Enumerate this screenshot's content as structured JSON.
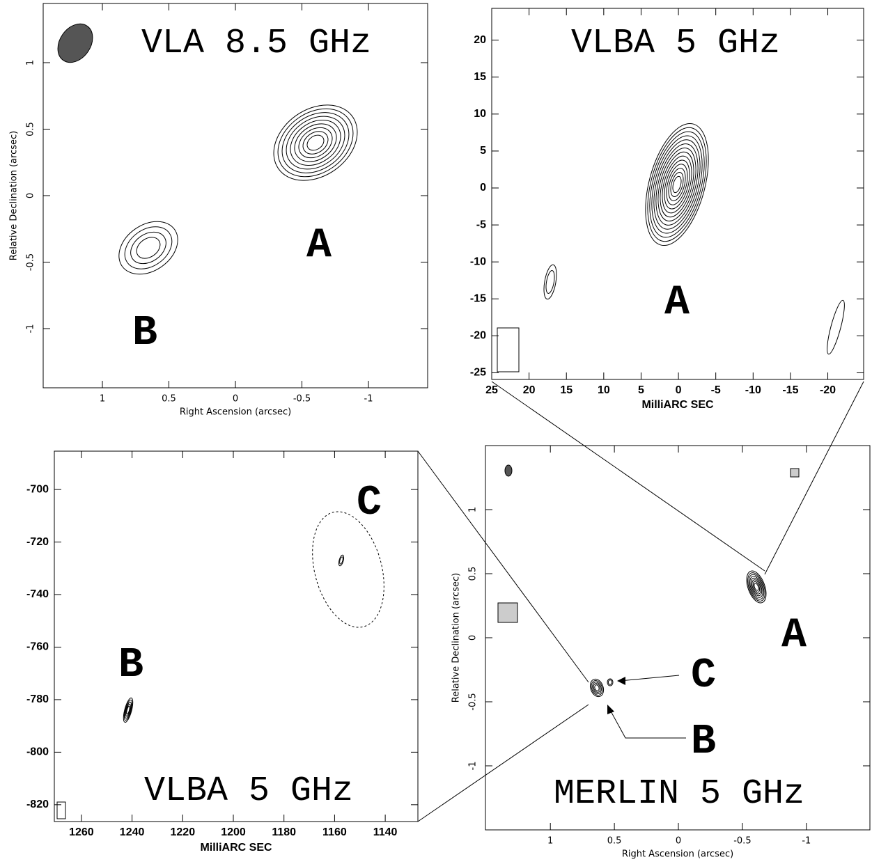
{
  "chart_data": [
    {
      "type": "contour",
      "title": "VLA 8.5 GHz",
      "x_label": "Right Ascension  (arcsec)",
      "y_label": "Relative Declination  (arcsec)",
      "xlim": [
        1.445,
        -1.445
      ],
      "ylim": [
        -1.445,
        1.445
      ],
      "xticks": [
        1,
        0.5,
        0,
        -0.5,
        -1
      ],
      "yticks": [
        -1,
        -0.5,
        0,
        0.5,
        1
      ],
      "annotations": [
        "A",
        "B"
      ]
    },
    {
      "type": "contour",
      "title": "VLBA 5 GHz",
      "x_label": "MilliARC SEC",
      "xlim": [
        25,
        -24.8
      ],
      "ylim": [
        -25.9,
        24.3
      ],
      "xticks": [
        25,
        20,
        15,
        10,
        5,
        0,
        -5,
        -10,
        -15,
        -20
      ],
      "yticks": [
        -25,
        -20,
        -15,
        -10,
        -5,
        0,
        5,
        10,
        15,
        20
      ],
      "annotations": [
        "A"
      ]
    },
    {
      "type": "contour",
      "title": "VLBA 5 GHz",
      "x_label": "MilliARC SEC",
      "xlim": [
        1270.7,
        1127.1
      ],
      "ylim": [
        -826.4,
        -685.4
      ],
      "xticks": [
        1260,
        1240,
        1220,
        1200,
        1180,
        1160,
        1140
      ],
      "yticks": [
        -820,
        -800,
        -780,
        -760,
        -740,
        -720,
        -700
      ],
      "annotations": [
        "B",
        "C"
      ]
    },
    {
      "type": "contour",
      "title": "MERLIN 5 GHz",
      "x_label": "Right Ascension  (arcsec)",
      "y_label": "Relative Declination  (arcsec)",
      "xlim": [
        1.507,
        -1.496
      ],
      "ylim": [
        -1.5,
        1.5
      ],
      "xticks": [
        1,
        0.5,
        0,
        -0.5,
        -1
      ],
      "yticks": [
        -1,
        -0.5,
        0,
        0.5,
        1
      ],
      "annotations": [
        "A",
        "C",
        "B"
      ]
    }
  ]
}
